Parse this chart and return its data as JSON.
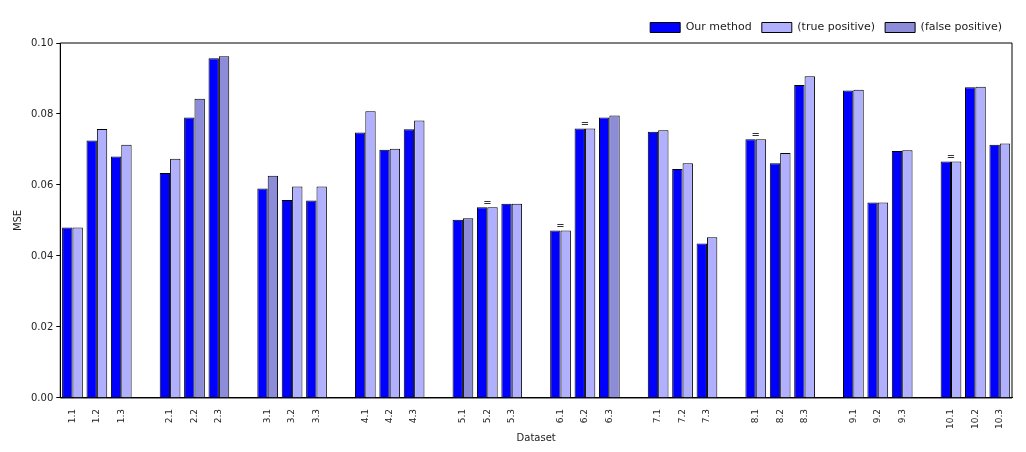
{
  "chart_data": {
    "type": "bar",
    "xlabel": "Dataset",
    "ylabel": "MSE",
    "categories": [
      "1.1",
      "1.2",
      "1.3",
      null,
      "2.1",
      "2.2",
      "2.3",
      null,
      "3.1",
      "3.2",
      "3.3",
      null,
      "4.1",
      "4.2",
      "4.3",
      null,
      "5.1",
      "5.2",
      "5.3",
      null,
      "6.1",
      "6.2",
      "6.3",
      null,
      "7.1",
      "7.2",
      "7.3",
      null,
      "8.1",
      "8.2",
      "8.3",
      null,
      "9.1",
      "9.2",
      "9.3",
      null,
      "10.1",
      "10.2",
      "10.3"
    ],
    "series": [
      {
        "name": "Our method",
        "color": "#0000ff",
        "values": [
          0.048,
          0.0725,
          0.068,
          null,
          0.0634,
          0.079,
          0.0957,
          null,
          0.059,
          0.0558,
          0.0556,
          null,
          0.0748,
          0.0699,
          0.0757,
          null,
          0.0502,
          0.0537,
          0.0547,
          null,
          0.0472,
          0.0759,
          0.079,
          null,
          0.075,
          0.0645,
          0.0435,
          null,
          0.0729,
          0.0661,
          0.0882,
          null,
          0.0866,
          0.0551,
          0.0696,
          null,
          0.0666,
          0.0875,
          0.0713
        ]
      },
      {
        "name": "(true positive)",
        "color": "#b0b0ff",
        "values": [
          0.048,
          0.0758,
          0.0713,
          null,
          0.0674,
          null,
          null,
          null,
          null,
          0.0596,
          0.0596,
          null,
          0.0808,
          0.0702,
          0.0782,
          null,
          null,
          0.0537,
          0.0547,
          null,
          0.0472,
          0.0759,
          null,
          null,
          0.0754,
          0.0661,
          0.0453,
          null,
          0.0729,
          0.069,
          0.0906,
          null,
          0.0868,
          0.0551,
          0.0698,
          null,
          0.0666,
          0.0877,
          0.0717
        ]
      },
      {
        "name": "(false positive)",
        "color": "#8c8cd8",
        "values": [
          null,
          null,
          null,
          null,
          null,
          0.0843,
          0.0963,
          null,
          0.0626,
          null,
          null,
          null,
          null,
          null,
          null,
          null,
          0.0506,
          null,
          null,
          null,
          null,
          null,
          0.0796,
          null,
          null,
          null,
          null,
          null,
          null,
          null,
          null,
          null,
          null,
          null,
          null,
          null,
          null,
          null,
          null
        ]
      }
    ],
    "ylim": [
      0,
      0.1
    ],
    "yticks": [
      {
        "value": 0,
        "label": "0.00"
      },
      {
        "value": 0.02,
        "label": "0.02"
      },
      {
        "value": 0.04,
        "label": "0.04"
      },
      {
        "value": 0.06,
        "label": "0.06"
      },
      {
        "value": 0.08,
        "label": "0.08"
      },
      {
        "value": 0.1,
        "label": "0.10"
      }
    ],
    "grid": false,
    "legend": "top right",
    "annotations": [
      {
        "text": "=",
        "x": "5.2",
        "y": 0.0537
      },
      {
        "text": "=",
        "x": "6.1",
        "y": 0.0472
      },
      {
        "text": "=",
        "x": "6.2",
        "y": 0.0759
      },
      {
        "text": "=",
        "x": "8.1",
        "y": 0.0729
      },
      {
        "text": "=",
        "x": "10.1",
        "y": 0.0666
      }
    ]
  }
}
